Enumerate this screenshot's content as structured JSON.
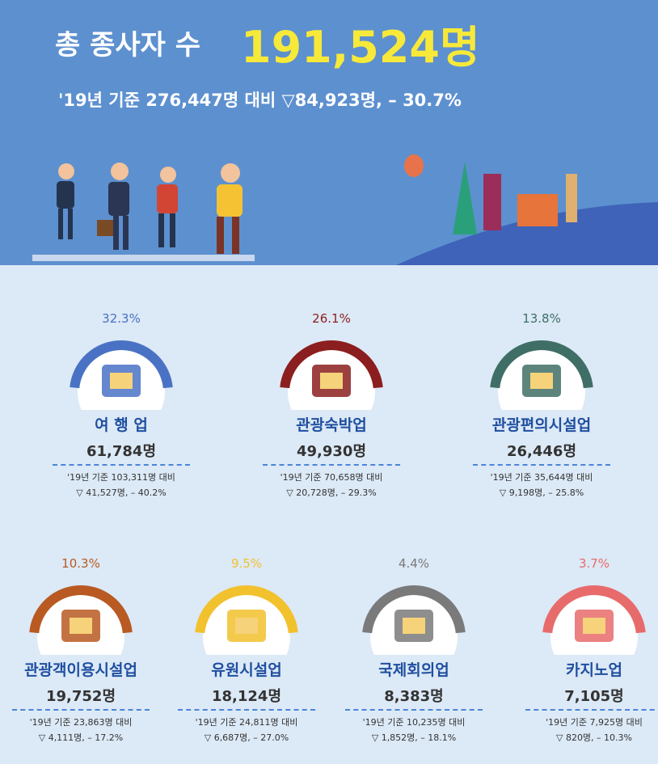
{
  "header": {
    "label": "총 종사자 수",
    "total": "191,524명",
    "subtitle": "'19년 기준 276,447명 대비 ▽84,923명, – 30.7%"
  },
  "items": [
    {
      "share": "32.3%",
      "name": "여 행 업",
      "count": "61,784명",
      "note1": "'19년 기준 103,311명 대비",
      "note2": "▽ 41,527명, – 40.2%",
      "color": "#4a72c4"
    },
    {
      "share": "26.1%",
      "name": "관광숙박업",
      "count": "49,930명",
      "note1": "'19년 기준 70,658명 대비",
      "note2": "▽ 20,728명, – 29.3%",
      "color": "#8b1e1e"
    },
    {
      "share": "13.8%",
      "name": "관광편의시설업",
      "count": "26,446명",
      "note1": "'19년 기준 35,644명 대비",
      "note2": "▽ 9,198명, – 25.8%",
      "color": "#3f6e66"
    },
    {
      "share": "10.3%",
      "name": "관광객이용시설업",
      "count": "19,752명",
      "note1": "'19년 기준 23,863명 대비",
      "note2": "▽ 4,111명, – 17.2%",
      "color": "#b85a22"
    },
    {
      "share": "9.5%",
      "name": "유원시설업",
      "count": "18,124명",
      "note1": "'19년 기준 24,811명 대비",
      "note2": "▽ 6,687명, – 27.0%",
      "color": "#f2c12e"
    },
    {
      "share": "4.4%",
      "name": "국제회의업",
      "count": "8,383명",
      "note1": "'19년 기준 10,235명 대비",
      "note2": "▽ 1,852명, – 18.1%",
      "color": "#7a7a7a"
    },
    {
      "share": "3.7%",
      "name": "카지노업",
      "count": "7,105명",
      "note1": "'19년 기준 7,925명 대비",
      "note2": "▽ 820명, – 10.3%",
      "color": "#e86b6b"
    }
  ]
}
